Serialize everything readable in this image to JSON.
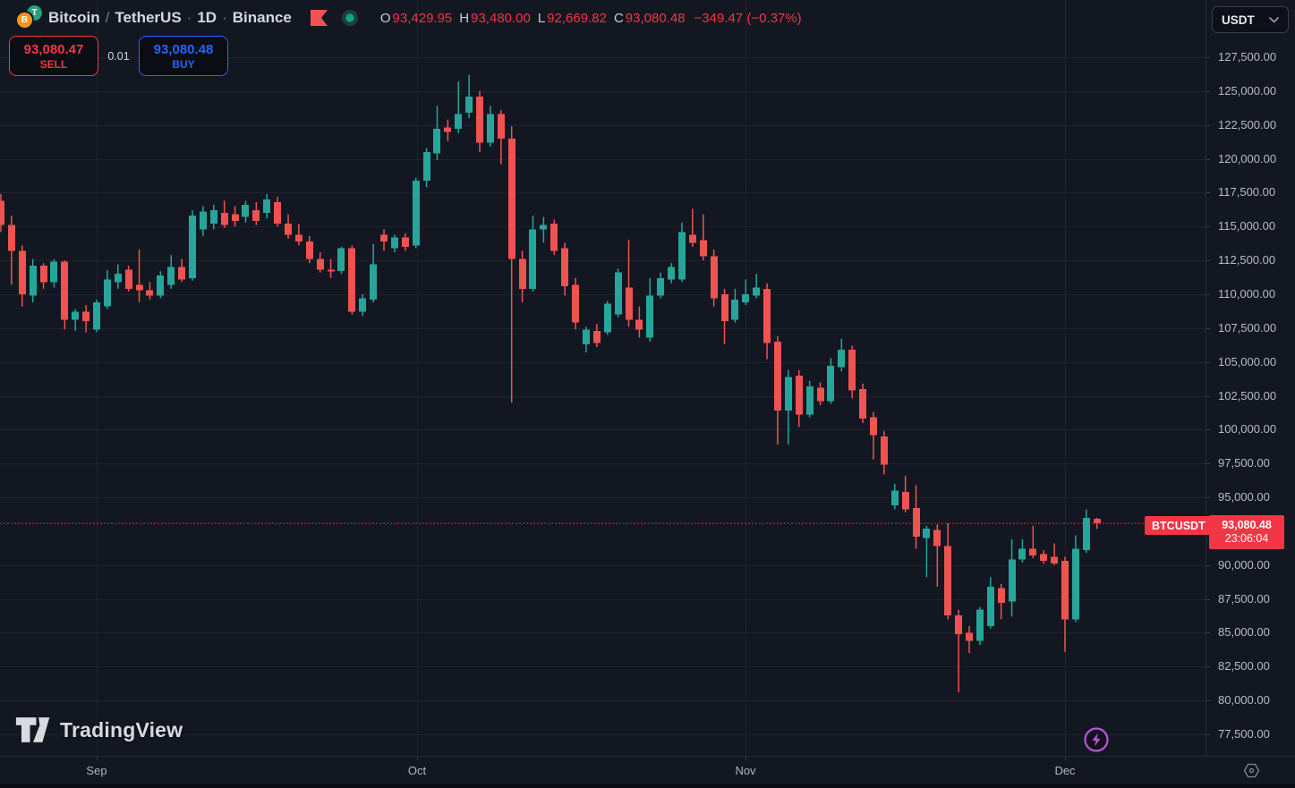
{
  "header": {
    "title": {
      "base": "Bitcoin",
      "separator": "/",
      "dot": "·",
      "quote": "TetherUS",
      "interval": "1D",
      "exchange": "Binance"
    },
    "ohlc": {
      "o_label": "O",
      "open": "93,429.95",
      "h_label": "H",
      "high": "93,480.00",
      "l_label": "L",
      "low": "92,669.82",
      "c_label": "C",
      "close": "93,080.48",
      "change": "−349.47 (−0.37%)"
    }
  },
  "order_panel": {
    "sell_price": "93,080.47",
    "sell_label": "SELL",
    "spread": "0.01",
    "buy_price": "93,080.48",
    "buy_label": "BUY"
  },
  "currency_selector": {
    "value": "USDT"
  },
  "price_label": {
    "symbol": "BTCUSDT",
    "price": "93,080.48",
    "countdown": "23:06:04"
  },
  "watermark": {
    "text": "TradingView"
  },
  "price_axis": {
    "tick_labels": [
      "127,500.00",
      "125,000.00",
      "122,500.00",
      "120,000.00",
      "117,500.00",
      "115,000.00",
      "112,500.00",
      "110,000.00",
      "107,500.00",
      "105,000.00",
      "102,500.00",
      "100,000.00",
      "97,500.00",
      "95,000.00",
      "90,000.00",
      "87,500.00",
      "85,000.00",
      "82,500.00",
      "80,000.00",
      "77,500.00"
    ],
    "tick_values": [
      127500,
      125000,
      122500,
      120000,
      117500,
      115000,
      112500,
      110000,
      107500,
      105000,
      102500,
      100000,
      97500,
      95000,
      90000,
      87500,
      85000,
      82500,
      80000,
      77500
    ]
  },
  "time_axis": {
    "months": [
      {
        "label": "Sep",
        "x": 108
      },
      {
        "label": "Oct",
        "x": 466
      },
      {
        "label": "Nov",
        "x": 833
      },
      {
        "label": "Dec",
        "x": 1190
      }
    ]
  },
  "colors": {
    "background": "#131722",
    "grid": "#9598a1",
    "up": "#26a69a",
    "down": "#ef5350",
    "accent_red": "#f23645",
    "accent_blue": "#2962ff",
    "purple": "#b858d8",
    "axis_text": "#b8bcc6"
  },
  "chart_data": {
    "type": "candlestick",
    "title": "Bitcoin / TetherUS · 1D · Binance",
    "symbol": "BTCUSDT",
    "interval": "1D",
    "exchange": "Binance",
    "ylim": [
      77500,
      127500
    ],
    "grid_step": 2500,
    "current_price": 93080.48,
    "up_color": "#26a69a",
    "down_color": "#ef5350",
    "candles": [
      [
        116900,
        117400,
        114600,
        115100
      ],
      [
        115100,
        115800,
        110700,
        113200
      ],
      [
        113200,
        113600,
        109100,
        110000
      ],
      [
        109900,
        112600,
        109400,
        112100
      ],
      [
        112100,
        112300,
        110400,
        110900
      ],
      [
        110900,
        112600,
        110500,
        112400
      ],
      [
        112400,
        112500,
        107400,
        108100
      ],
      [
        108100,
        108900,
        107300,
        108700
      ],
      [
        108700,
        109200,
        107200,
        108000
      ],
      [
        107400,
        109600,
        107200,
        109400
      ],
      [
        109100,
        111800,
        108900,
        111100
      ],
      [
        110900,
        112200,
        110400,
        111500
      ],
      [
        111800,
        112100,
        110200,
        110400
      ],
      [
        110700,
        113300,
        109400,
        110300
      ],
      [
        110300,
        110900,
        109600,
        109900
      ],
      [
        109900,
        111700,
        109700,
        111400
      ],
      [
        110700,
        112900,
        110400,
        112000
      ],
      [
        112000,
        112600,
        110900,
        111100
      ],
      [
        111200,
        116200,
        111000,
        115800
      ],
      [
        114800,
        116500,
        114300,
        116100
      ],
      [
        115200,
        116600,
        114800,
        116200
      ],
      [
        116000,
        116900,
        114900,
        115100
      ],
      [
        115900,
        116500,
        115000,
        115400
      ],
      [
        115700,
        116900,
        115300,
        116600
      ],
      [
        116200,
        116800,
        115100,
        115400
      ],
      [
        116000,
        117400,
        115600,
        117000
      ],
      [
        116800,
        117200,
        115000,
        115200
      ],
      [
        115200,
        115900,
        114100,
        114400
      ],
      [
        114400,
        115200,
        113600,
        113900
      ],
      [
        113900,
        114300,
        112300,
        112600
      ],
      [
        112600,
        113100,
        111600,
        111800
      ],
      [
        111800,
        112600,
        111200,
        111700
      ],
      [
        111700,
        113500,
        111500,
        113400
      ],
      [
        113400,
        113600,
        108500,
        108700
      ],
      [
        108700,
        110000,
        108400,
        109700
      ],
      [
        109600,
        113700,
        109400,
        112200
      ],
      [
        114400,
        114800,
        113200,
        113900
      ],
      [
        113400,
        114400,
        113100,
        114200
      ],
      [
        114200,
        114500,
        113200,
        113500
      ],
      [
        113600,
        118600,
        113400,
        118400
      ],
      [
        118400,
        120800,
        117900,
        120500
      ],
      [
        120400,
        123900,
        119900,
        122200
      ],
      [
        122300,
        122900,
        121300,
        122000
      ],
      [
        122200,
        125700,
        121900,
        123300
      ],
      [
        123400,
        126200,
        123000,
        124600
      ],
      [
        124600,
        125000,
        120500,
        121200
      ],
      [
        121200,
        123900,
        120900,
        123300
      ],
      [
        123300,
        123600,
        119600,
        121500
      ],
      [
        121500,
        122400,
        102000,
        112600
      ],
      [
        112600,
        113200,
        109400,
        110400
      ],
      [
        110400,
        115800,
        110200,
        114800
      ],
      [
        114800,
        115700,
        113800,
        115100
      ],
      [
        115200,
        115500,
        112900,
        113200
      ],
      [
        113400,
        113800,
        109900,
        110600
      ],
      [
        110700,
        111200,
        107400,
        107900
      ],
      [
        106300,
        107600,
        105700,
        107400
      ],
      [
        107300,
        107800,
        106100,
        106400
      ],
      [
        107200,
        109500,
        107000,
        109300
      ],
      [
        108500,
        111900,
        108300,
        111600
      ],
      [
        110500,
        114000,
        107600,
        108100
      ],
      [
        108100,
        109100,
        106800,
        107400
      ],
      [
        106800,
        111200,
        106500,
        109900
      ],
      [
        109900,
        111600,
        109700,
        111200
      ],
      [
        111100,
        112300,
        110800,
        112000
      ],
      [
        111100,
        115300,
        110900,
        114600
      ],
      [
        114400,
        116300,
        113500,
        113800
      ],
      [
        114000,
        115900,
        112500,
        112800
      ],
      [
        112800,
        113300,
        109100,
        109700
      ],
      [
        110000,
        110400,
        106300,
        108000
      ],
      [
        108100,
        110400,
        107900,
        109600
      ],
      [
        109400,
        111100,
        109200,
        110000
      ],
      [
        109900,
        111500,
        109700,
        110500
      ],
      [
        110400,
        110800,
        105200,
        106400
      ],
      [
        106500,
        106900,
        98900,
        101400
      ],
      [
        101400,
        104400,
        98900,
        103900
      ],
      [
        104000,
        104400,
        100200,
        101100
      ],
      [
        101100,
        103600,
        100900,
        103200
      ],
      [
        103100,
        103500,
        101800,
        102100
      ],
      [
        102100,
        105300,
        101900,
        104700
      ],
      [
        104600,
        106700,
        104300,
        105900
      ],
      [
        105900,
        106200,
        102300,
        102900
      ],
      [
        103000,
        103400,
        100500,
        100800
      ],
      [
        100900,
        101300,
        97800,
        99600
      ],
      [
        99500,
        99900,
        96700,
        97400
      ],
      [
        94400,
        96000,
        94100,
        95500
      ],
      [
        95400,
        96600,
        93900,
        94100
      ],
      [
        94200,
        95900,
        91200,
        92100
      ],
      [
        92000,
        92900,
        89100,
        92700
      ],
      [
        92600,
        93000,
        88400,
        91400
      ],
      [
        91400,
        93100,
        86000,
        86300
      ],
      [
        86300,
        86700,
        80600,
        84900
      ],
      [
        85000,
        85500,
        83500,
        84400
      ],
      [
        84400,
        86900,
        84100,
        86700
      ],
      [
        85500,
        89100,
        85300,
        88400
      ],
      [
        88300,
        88600,
        86000,
        87200
      ],
      [
        87300,
        91900,
        86200,
        90400
      ],
      [
        90400,
        91900,
        90200,
        91200
      ],
      [
        91200,
        92900,
        90500,
        90700
      ],
      [
        90800,
        91100,
        90100,
        90300
      ],
      [
        90600,
        91600,
        90000,
        90100
      ],
      [
        90300,
        90600,
        83600,
        86000
      ],
      [
        86000,
        92200,
        85800,
        91200
      ],
      [
        91100,
        94100,
        90900,
        93500
      ],
      [
        93429.95,
        93480.0,
        92669.82,
        93080.48
      ]
    ]
  }
}
